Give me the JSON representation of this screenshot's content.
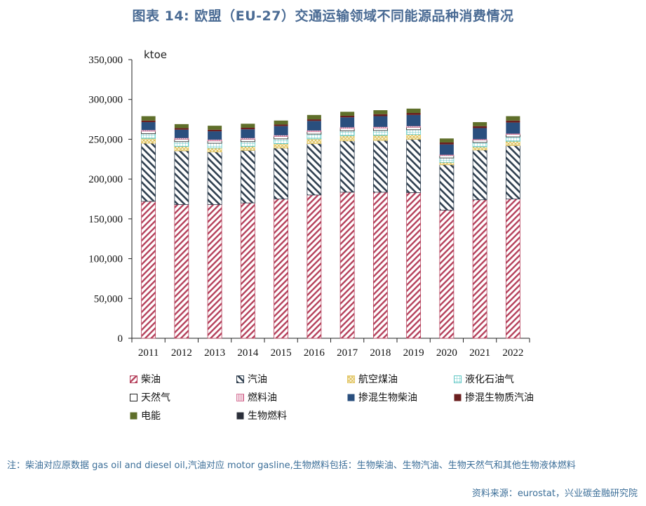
{
  "title": "图表 14: 欧盟（EU-27）交通运输领域不同能源品种消费情况",
  "note": "注：柴油对应原数据 gas oil and diesel oil,汽油对应 motor gasline,生物燃料包括：生物柴油、生物汽油、生物天然气和其他生物液体燃料",
  "source": "资料来源：eurostat，兴业碳金融研究院",
  "chart_data": {
    "type": "bar",
    "stacked": true,
    "unit_label": "ktoe",
    "ylim": [
      0,
      350000
    ],
    "yticks": [
      0,
      50000,
      100000,
      150000,
      200000,
      250000,
      300000,
      350000
    ],
    "ytick_labels": [
      "0",
      "50,000",
      "100,000",
      "150,000",
      "200,000",
      "250,000",
      "300,000",
      "350,000"
    ],
    "categories": [
      "2011",
      "2012",
      "2013",
      "2014",
      "2015",
      "2016",
      "2017",
      "2018",
      "2019",
      "2020",
      "2021",
      "2022"
    ],
    "series": [
      {
        "name": "柴油",
        "pattern": "diag-red",
        "color": "#b5405b",
        "values": [
          172000,
          168000,
          168000,
          170000,
          175000,
          180000,
          183500,
          183500,
          183000,
          161000,
          174000,
          175000
        ]
      },
      {
        "name": "汽油",
        "pattern": "diag-dark",
        "color": "#2f3f4f",
        "values": [
          73000,
          67500,
          66000,
          66000,
          64000,
          64500,
          64500,
          65000,
          67000,
          57000,
          62500,
          67000
        ]
      },
      {
        "name": "航空煤油",
        "pattern": "cross-yellow",
        "color": "#e3c765",
        "values": [
          6000,
          5500,
          5000,
          5000,
          5500,
          6000,
          6500,
          6500,
          6000,
          3000,
          4000,
          5500
        ]
      },
      {
        "name": "液化石油气",
        "pattern": "grid-cyan",
        "color": "#5fc7c5",
        "values": [
          6000,
          6000,
          6000,
          6000,
          6000,
          6000,
          6000,
          6000,
          6000,
          5500,
          5500,
          5500
        ]
      },
      {
        "name": "天然气",
        "pattern": "white",
        "color": "#222222",
        "values": [
          3000,
          3000,
          3000,
          3000,
          3000,
          3000,
          3000,
          3000,
          3000,
          3000,
          3000,
          3000
        ]
      },
      {
        "name": "燃料油",
        "pattern": "vert-pink",
        "color": "#d77a9c",
        "values": [
          1500,
          1500,
          1500,
          1500,
          1500,
          1500,
          1500,
          1500,
          1500,
          1000,
          1000,
          1000
        ]
      },
      {
        "name": "掺混生物柴油",
        "pattern": "solid",
        "color": "#2a4f7e",
        "values": [
          10000,
          10500,
          10500,
          11000,
          11500,
          12000,
          12500,
          13500,
          14000,
          13000,
          14000,
          14000
        ]
      },
      {
        "name": "掺混生物质汽油",
        "pattern": "solid",
        "color": "#6b1f1f",
        "values": [
          2000,
          2000,
          2000,
          2000,
          2000,
          2000,
          2000,
          2500,
          2500,
          2500,
          2500,
          2500
        ]
      },
      {
        "name": "电能",
        "pattern": "solid",
        "color": "#5f6f2a",
        "values": [
          5500,
          5000,
          5000,
          5000,
          5000,
          5500,
          5000,
          5000,
          5500,
          5000,
          5000,
          5500
        ]
      },
      {
        "name": "生物燃料",
        "pattern": "solid",
        "color": "#2b2f3a",
        "values": [
          0,
          0,
          0,
          0,
          0,
          0,
          0,
          0,
          0,
          0,
          0,
          0
        ]
      }
    ]
  }
}
